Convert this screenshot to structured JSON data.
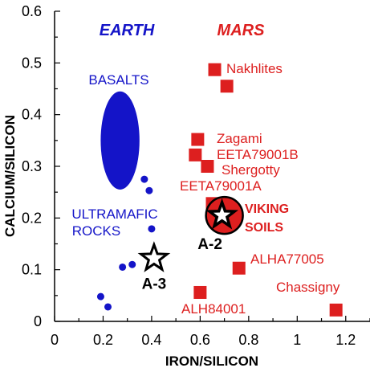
{
  "chart_data": {
    "type": "scatter",
    "xlabel": "IRON/SILICON",
    "ylabel": "CALCIUM/SILICON",
    "xlim": [
      0,
      1.3
    ],
    "ylim": [
      0,
      0.6
    ],
    "x_ticks": [
      "0",
      "0.2",
      "0.4",
      "0.6",
      "0.8",
      "1",
      "1.2"
    ],
    "y_ticks": [
      "0",
      "0.1",
      "0.2",
      "0.3",
      "0.4",
      "0.5",
      "0.6"
    ],
    "group_labels": {
      "earth": "EARTH",
      "mars": "MARS"
    },
    "colors": {
      "earth": "#1414c8",
      "mars": "#dd1f1f",
      "axes": "#000000"
    },
    "earth": {
      "basalts": {
        "label": "BASALTS",
        "cx": 0.27,
        "cy": 0.35,
        "rx": 0.08,
        "ry": 0.095
      },
      "ultramafic_label": [
        "ULTRAMAFIC",
        "ROCKS"
      ],
      "ultramafic_points": [
        {
          "x": 0.37,
          "y": 0.275
        },
        {
          "x": 0.39,
          "y": 0.253
        },
        {
          "x": 0.4,
          "y": 0.179
        },
        {
          "x": 0.28,
          "y": 0.105
        },
        {
          "x": 0.32,
          "y": 0.11
        },
        {
          "x": 0.19,
          "y": 0.048
        },
        {
          "x": 0.22,
          "y": 0.028
        }
      ]
    },
    "mars": {
      "points": [
        {
          "name": "Nakhlites",
          "x": 0.66,
          "y": 0.487
        },
        {
          "name": "",
          "x": 0.71,
          "y": 0.455
        },
        {
          "name": "Zagami",
          "x": 0.59,
          "y": 0.352
        },
        {
          "name": "EETA79001B",
          "x": 0.58,
          "y": 0.322
        },
        {
          "name": "Shergotty",
          "x": 0.63,
          "y": 0.3
        },
        {
          "name": "EETA79001A",
          "x": 0.65,
          "y": 0.228
        },
        {
          "name": "ALHA77005",
          "x": 0.76,
          "y": 0.103
        },
        {
          "name": "ALH84001",
          "x": 0.6,
          "y": 0.056
        },
        {
          "name": "Chassigny",
          "x": 1.16,
          "y": 0.022
        }
      ],
      "viking_soils": {
        "label": [
          "VIKING",
          "SOILS"
        ],
        "x": 0.7,
        "y": 0.205
      },
      "stars": [
        {
          "name": "A-2",
          "x": 0.69,
          "y": 0.205
        },
        {
          "name": "A-3",
          "x": 0.41,
          "y": 0.122
        }
      ]
    }
  }
}
